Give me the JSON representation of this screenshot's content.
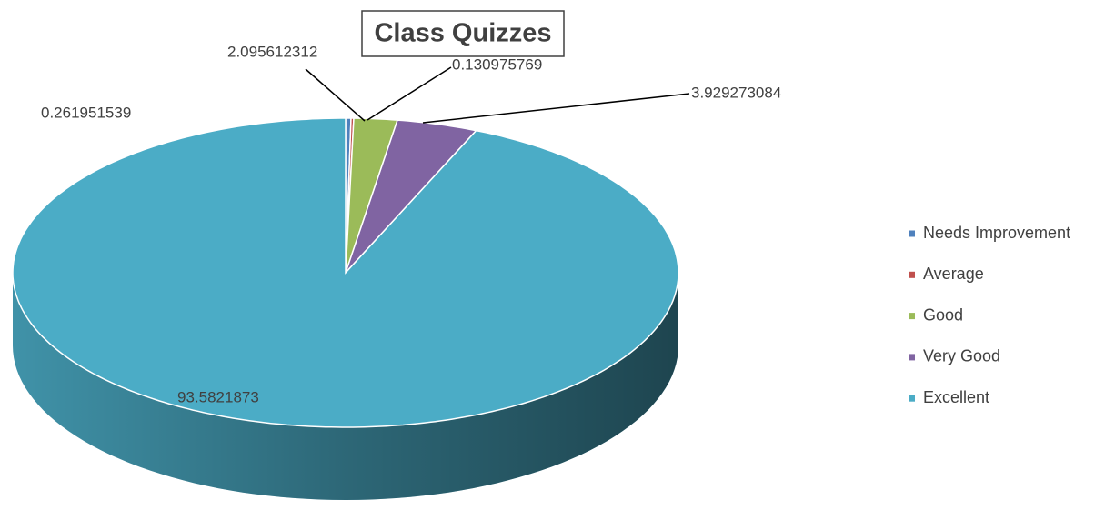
{
  "chart_data": {
    "type": "pie",
    "title": "Class Quizzes",
    "categories": [
      "Needs Improvement",
      "Average",
      "Good",
      "Very Good",
      "Excellent"
    ],
    "values": [
      0.261951539,
      0.130975769,
      2.095612312,
      3.929273084,
      93.5821873
    ],
    "colors": [
      "#4f81bd",
      "#c0504d",
      "#9bbb59",
      "#8064a2",
      "#4bacc6"
    ],
    "legend": "right",
    "three_d": true
  }
}
